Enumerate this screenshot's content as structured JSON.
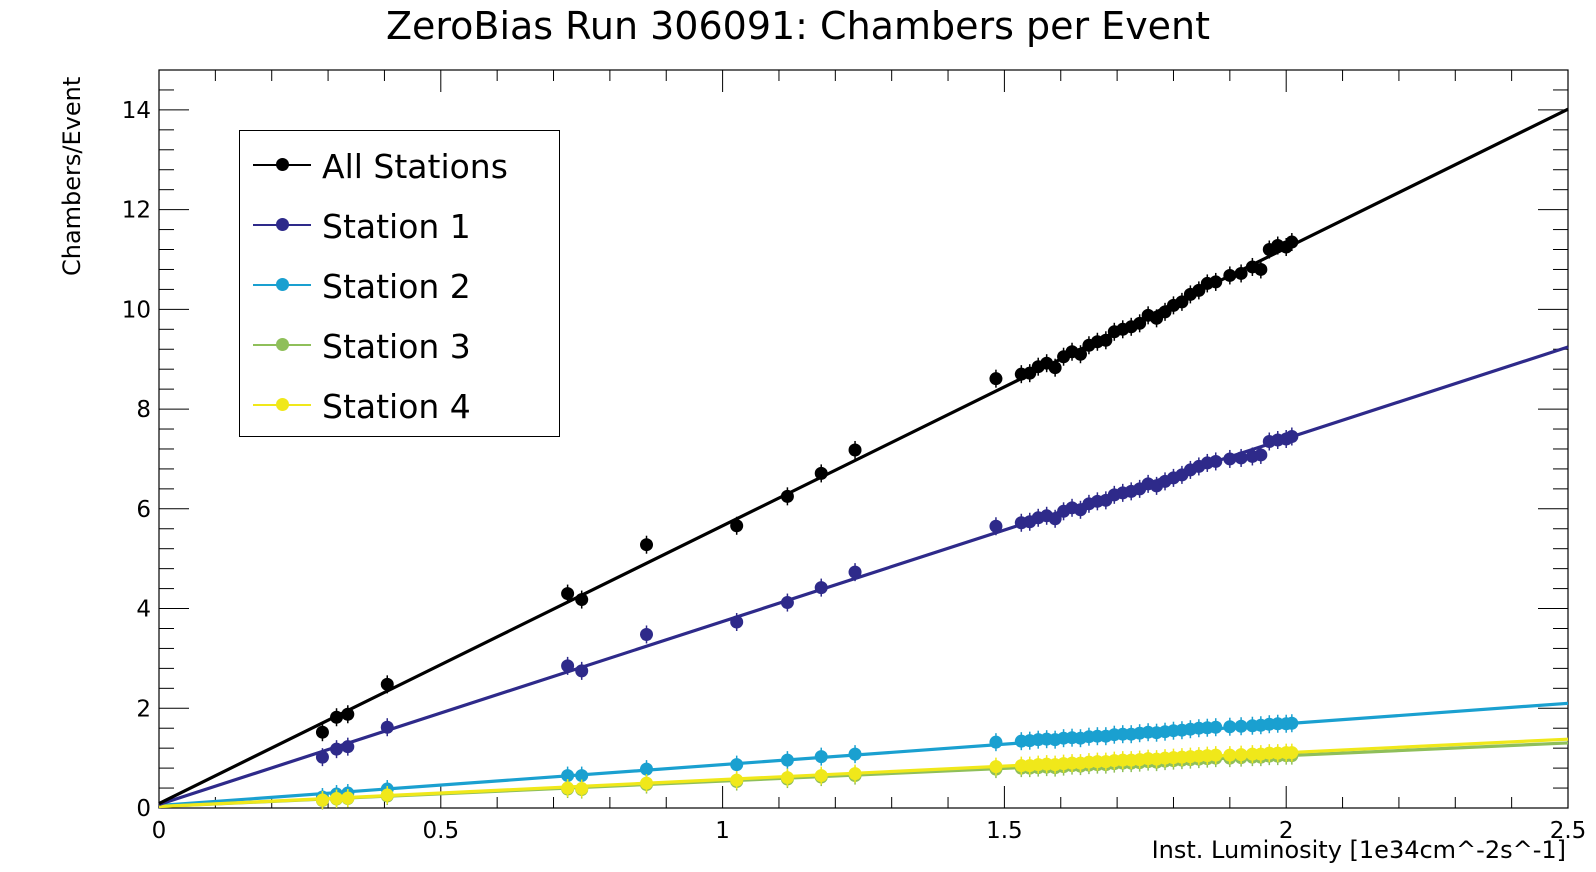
{
  "chart_data": {
    "type": "scatter",
    "title": "ZeroBias Run 306091: Chambers per Event",
    "xlabel": "Inst. Luminosity [1e34cm^-2s^-1]",
    "ylabel": "Chambers/Event",
    "xlim": [
      0,
      2.5
    ],
    "ylim": [
      0,
      14.8
    ],
    "xticks": [
      0,
      0.5,
      1,
      1.5,
      2,
      2.5
    ],
    "xtick_labels": [
      "0",
      "0.5",
      "1",
      "1.5",
      "2",
      "2.5"
    ],
    "yticks": [
      0,
      2,
      4,
      6,
      8,
      10,
      12,
      14
    ],
    "ytick_labels": [
      "0",
      "2",
      "4",
      "6",
      "8",
      "10",
      "12",
      "14"
    ],
    "grid": false,
    "legend_position": "top-left",
    "series": [
      {
        "name": "All Stations",
        "color": "#000000",
        "fit": [
          0.09,
          5.57
        ],
        "x": [
          0.29,
          0.315,
          0.335,
          0.405,
          0.725,
          0.75,
          0.865,
          1.025,
          1.115,
          1.175,
          1.235,
          1.485,
          1.53,
          1.545,
          1.56,
          1.575,
          1.59,
          1.605,
          1.62,
          1.635,
          1.65,
          1.665,
          1.68,
          1.695,
          1.71,
          1.725,
          1.74,
          1.755,
          1.77,
          1.785,
          1.8,
          1.815,
          1.83,
          1.845,
          1.86,
          1.875,
          1.9,
          1.92,
          1.94,
          1.955,
          1.97,
          1.985,
          2.0,
          2.01
        ],
        "y": [
          1.52,
          1.82,
          1.88,
          2.48,
          4.3,
          4.18,
          5.28,
          5.66,
          6.25,
          6.71,
          7.18,
          8.61,
          8.7,
          8.72,
          8.85,
          8.92,
          8.83,
          9.05,
          9.15,
          9.1,
          9.28,
          9.35,
          9.38,
          9.55,
          9.6,
          9.65,
          9.72,
          9.88,
          9.82,
          9.95,
          10.08,
          10.15,
          10.3,
          10.38,
          10.52,
          10.55,
          10.68,
          10.72,
          10.85,
          10.8,
          11.2,
          11.28,
          11.25,
          11.35
        ]
      },
      {
        "name": "Station 1",
        "color": "#2e2a8a",
        "fit": [
          0.07,
          3.67
        ],
        "x": [
          0.29,
          0.315,
          0.335,
          0.405,
          0.725,
          0.75,
          0.865,
          1.025,
          1.115,
          1.175,
          1.235,
          1.485,
          1.53,
          1.545,
          1.56,
          1.575,
          1.59,
          1.605,
          1.62,
          1.635,
          1.65,
          1.665,
          1.68,
          1.695,
          1.71,
          1.725,
          1.74,
          1.755,
          1.77,
          1.785,
          1.8,
          1.815,
          1.83,
          1.845,
          1.86,
          1.875,
          1.9,
          1.92,
          1.94,
          1.955,
          1.97,
          1.985,
          2.0,
          2.01
        ],
        "y": [
          1.02,
          1.18,
          1.23,
          1.62,
          2.85,
          2.75,
          3.48,
          3.73,
          4.12,
          4.42,
          4.73,
          5.65,
          5.72,
          5.74,
          5.82,
          5.86,
          5.8,
          5.95,
          6.02,
          5.98,
          6.1,
          6.15,
          6.17,
          6.28,
          6.32,
          6.35,
          6.4,
          6.5,
          6.46,
          6.55,
          6.62,
          6.68,
          6.78,
          6.85,
          6.92,
          6.95,
          7.0,
          7.02,
          7.05,
          7.08,
          7.35,
          7.38,
          7.4,
          7.45
        ]
      },
      {
        "name": "Station 2",
        "color": "#1aa0d0",
        "fit": [
          0.05,
          0.82
        ],
        "x": [
          0.29,
          0.315,
          0.335,
          0.405,
          0.725,
          0.75,
          0.865,
          1.025,
          1.115,
          1.175,
          1.235,
          1.485,
          1.53,
          1.545,
          1.56,
          1.575,
          1.59,
          1.605,
          1.62,
          1.635,
          1.65,
          1.665,
          1.68,
          1.695,
          1.71,
          1.725,
          1.74,
          1.755,
          1.77,
          1.785,
          1.8,
          1.815,
          1.83,
          1.845,
          1.86,
          1.875,
          1.9,
          1.92,
          1.94,
          1.955,
          1.97,
          1.985,
          2.0,
          2.01
        ],
        "y": [
          0.22,
          0.28,
          0.3,
          0.38,
          0.65,
          0.65,
          0.78,
          0.87,
          0.96,
          1.03,
          1.08,
          1.32,
          1.34,
          1.35,
          1.37,
          1.38,
          1.37,
          1.4,
          1.41,
          1.4,
          1.43,
          1.44,
          1.44,
          1.47,
          1.48,
          1.48,
          1.5,
          1.52,
          1.51,
          1.53,
          1.55,
          1.56,
          1.58,
          1.6,
          1.61,
          1.62,
          1.63,
          1.64,
          1.65,
          1.66,
          1.68,
          1.69,
          1.69,
          1.7
        ]
      },
      {
        "name": "Station 3",
        "color": "#8fbf5a",
        "fit": [
          0.03,
          0.51
        ],
        "x": [
          0.29,
          0.315,
          0.335,
          0.405,
          0.725,
          0.75,
          0.865,
          1.025,
          1.115,
          1.175,
          1.235,
          1.485,
          1.53,
          1.545,
          1.56,
          1.575,
          1.59,
          1.605,
          1.62,
          1.635,
          1.65,
          1.665,
          1.68,
          1.695,
          1.71,
          1.725,
          1.74,
          1.755,
          1.77,
          1.785,
          1.8,
          1.815,
          1.83,
          1.845,
          1.86,
          1.875,
          1.9,
          1.92,
          1.94,
          1.955,
          1.97,
          1.985,
          2.0,
          2.01
        ],
        "y": [
          0.15,
          0.18,
          0.19,
          0.24,
          0.38,
          0.37,
          0.47,
          0.53,
          0.58,
          0.62,
          0.65,
          0.78,
          0.8,
          0.8,
          0.81,
          0.82,
          0.81,
          0.83,
          0.85,
          0.84,
          0.86,
          0.87,
          0.87,
          0.89,
          0.9,
          0.9,
          0.91,
          0.93,
          0.92,
          0.94,
          0.95,
          0.96,
          0.97,
          0.98,
          0.99,
          1.0,
          1.0,
          1.01,
          1.02,
          1.02,
          1.04,
          1.04,
          1.05,
          1.05
        ]
      },
      {
        "name": "Station 4",
        "color": "#f0e81a",
        "fit": [
          0.03,
          0.54
        ],
        "x": [
          0.29,
          0.315,
          0.335,
          0.405,
          0.725,
          0.75,
          0.865,
          1.025,
          1.115,
          1.175,
          1.235,
          1.485,
          1.53,
          1.545,
          1.56,
          1.575,
          1.59,
          1.605,
          1.62,
          1.635,
          1.65,
          1.665,
          1.68,
          1.695,
          1.71,
          1.725,
          1.74,
          1.755,
          1.77,
          1.785,
          1.8,
          1.815,
          1.83,
          1.845,
          1.86,
          1.875,
          1.9,
          1.92,
          1.94,
          1.955,
          1.97,
          1.985,
          2.0,
          2.01
        ],
        "y": [
          0.16,
          0.19,
          0.2,
          0.26,
          0.4,
          0.39,
          0.5,
          0.56,
          0.61,
          0.65,
          0.69,
          0.83,
          0.85,
          0.85,
          0.87,
          0.88,
          0.87,
          0.89,
          0.9,
          0.9,
          0.92,
          0.93,
          0.93,
          0.95,
          0.96,
          0.96,
          0.97,
          0.99,
          0.98,
          1.0,
          1.01,
          1.02,
          1.03,
          1.04,
          1.05,
          1.06,
          1.06,
          1.07,
          1.08,
          1.08,
          1.1,
          1.1,
          1.11,
          1.11
        ]
      }
    ]
  }
}
